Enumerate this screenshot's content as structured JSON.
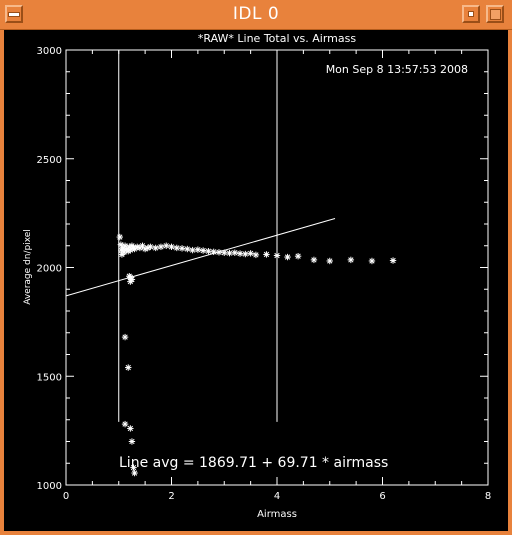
{
  "window": {
    "title": "IDL 0",
    "title_color": "#e8823c",
    "menu_icon": "window-menu-icon",
    "minimize_icon": "minimize-icon",
    "maximize_icon": "maximize-icon"
  },
  "plot": {
    "title": "*RAW* Line Total vs. Airmass",
    "timestamp": "Mon Sep  8 13:57:53 2008",
    "xlabel": "Airmass",
    "ylabel": "Average dn/pixel",
    "annotation": "Line avg = 1869.71 + 69.71 * airmass",
    "x_ticks": [
      "0",
      "2",
      "4",
      "6",
      "8"
    ],
    "y_ticks": [
      "1000",
      "1500",
      "2000",
      "2500",
      "3000"
    ]
  },
  "chart_data": {
    "type": "scatter",
    "title": "*RAW* Line Total vs. Airmass",
    "xlabel": "Airmass",
    "ylabel": "Average dn/pixel",
    "xlim": [
      0,
      8
    ],
    "ylim": [
      1000,
      3000
    ],
    "x_ticks": [
      0,
      2,
      4,
      6,
      8
    ],
    "y_ticks": [
      1000,
      1500,
      2000,
      2500,
      3000
    ],
    "grid": false,
    "background": "#000000",
    "foreground": "#ffffff",
    "series": [
      {
        "marker": "asterisk",
        "points": [
          [
            1.02,
            2140
          ],
          [
            1.04,
            2105
          ],
          [
            1.05,
            2080
          ],
          [
            1.06,
            2060
          ],
          [
            1.08,
            2090
          ],
          [
            1.1,
            2070
          ],
          [
            1.12,
            2100
          ],
          [
            1.15,
            2085
          ],
          [
            1.18,
            2075
          ],
          [
            1.2,
            2095
          ],
          [
            1.22,
            2080
          ],
          [
            1.25,
            2100
          ],
          [
            1.28,
            2090
          ],
          [
            1.3,
            2085
          ],
          [
            1.35,
            2095
          ],
          [
            1.4,
            2090
          ],
          [
            1.45,
            2100
          ],
          [
            1.5,
            2085
          ],
          [
            1.55,
            2090
          ],
          [
            1.6,
            2095
          ],
          [
            1.7,
            2090
          ],
          [
            1.8,
            2095
          ],
          [
            1.9,
            2100
          ],
          [
            2.0,
            2095
          ],
          [
            2.1,
            2090
          ],
          [
            2.2,
            2088
          ],
          [
            2.3,
            2085
          ],
          [
            2.4,
            2080
          ],
          [
            2.5,
            2082
          ],
          [
            2.6,
            2078
          ],
          [
            2.7,
            2075
          ],
          [
            2.8,
            2072
          ],
          [
            2.9,
            2070
          ],
          [
            3.0,
            2068
          ],
          [
            3.1,
            2066
          ],
          [
            3.2,
            2068
          ],
          [
            3.3,
            2064
          ],
          [
            3.4,
            2062
          ],
          [
            3.5,
            2065
          ],
          [
            3.6,
            2058
          ],
          [
            3.8,
            2060
          ],
          [
            4.0,
            2055
          ],
          [
            4.2,
            2048
          ],
          [
            4.4,
            2052
          ],
          [
            4.7,
            2035
          ],
          [
            5.0,
            2030
          ],
          [
            5.4,
            2035
          ],
          [
            5.8,
            2030
          ],
          [
            6.2,
            2032
          ],
          [
            1.22,
            1955
          ],
          [
            1.22,
            1935
          ],
          [
            1.2,
            1960
          ],
          [
            1.25,
            1945
          ],
          [
            1.12,
            1680
          ],
          [
            1.18,
            1540
          ],
          [
            1.12,
            1280
          ],
          [
            1.22,
            1260
          ],
          [
            1.25,
            1200
          ],
          [
            1.28,
            1080
          ],
          [
            1.3,
            1055
          ]
        ]
      }
    ],
    "fit_line": {
      "intercept": 1869.71,
      "slope": 69.71,
      "x_range": [
        0,
        5.1
      ]
    },
    "vertical_lines_x": [
      1.0,
      4.0
    ],
    "vertical_lines_y_range": [
      1290,
      3000
    ],
    "annotations": [
      "Line avg = 1869.71 + 69.71 * airmass",
      "Mon Sep  8 13:57:53 2008"
    ]
  }
}
